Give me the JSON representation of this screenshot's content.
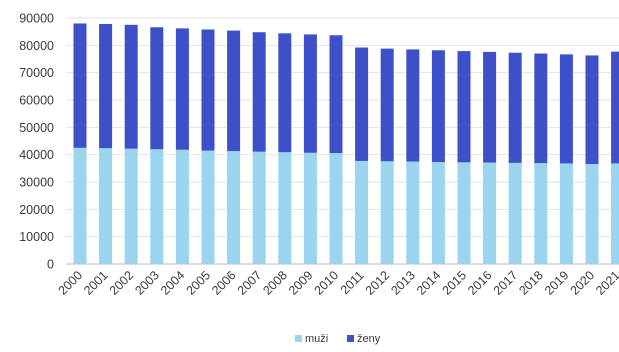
{
  "chart_data": {
    "type": "bar",
    "stacked": true,
    "categories": [
      "2000",
      "2001",
      "2002",
      "2003",
      "2004",
      "2005",
      "2006",
      "2007",
      "2008",
      "2009",
      "2010",
      "2011",
      "2012",
      "2013",
      "2014",
      "2015",
      "2016",
      "2017",
      "2018",
      "2019",
      "2020",
      "2021"
    ],
    "series": [
      {
        "name": "muži",
        "color": "#9ad4ef",
        "values": [
          42500,
          42400,
          42200,
          42000,
          41800,
          41500,
          41300,
          41100,
          40900,
          40700,
          40600,
          37700,
          37600,
          37500,
          37300,
          37200,
          37100,
          37000,
          36900,
          36800,
          36600,
          36800
        ]
      },
      {
        "name": "ženy",
        "color": "#3e50c8",
        "values": [
          45500,
          45400,
          45300,
          44600,
          44400,
          44300,
          44100,
          43700,
          43500,
          43300,
          43100,
          41500,
          41200,
          41000,
          40900,
          40700,
          40500,
          40300,
          40100,
          39900,
          39700,
          40900
        ]
      }
    ],
    "y_ticks": [
      "0",
      "10000",
      "20000",
      "30000",
      "40000",
      "50000",
      "60000",
      "70000",
      "80000",
      "90000"
    ],
    "ylim": [
      0,
      90000
    ],
    "grid": true,
    "legend_position": "bottom-center",
    "title": "",
    "xlabel": "",
    "ylabel": ""
  }
}
